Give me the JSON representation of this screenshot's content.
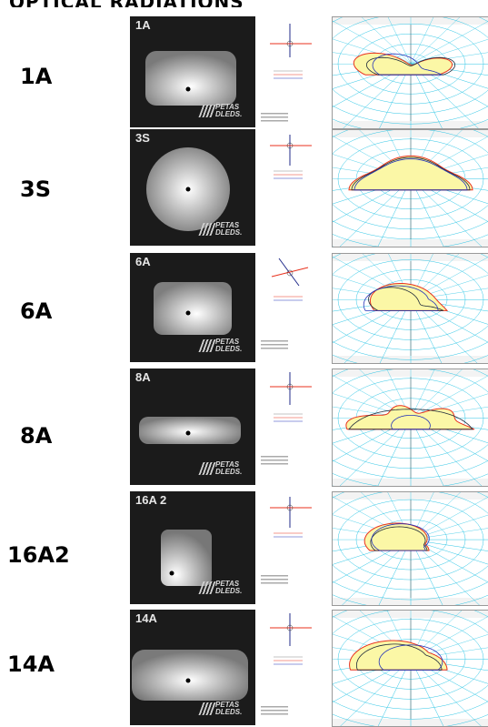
{
  "page": {
    "heading": "OPTICAL RADIATIONS"
  },
  "brand": {
    "line1": "PETAS",
    "line2": "DLEDS."
  },
  "rows": [
    {
      "label": "1A",
      "code": "1A"
    },
    {
      "label": "3S",
      "code": "3S"
    },
    {
      "label": "6A",
      "code": "6A"
    },
    {
      "label": "8A",
      "code": "8A"
    },
    {
      "label": "16A2",
      "code": "16A 2"
    },
    {
      "label": "14A",
      "code": "14A"
    }
  ],
  "polar_colors": {
    "grid": "#2ec6e6",
    "fill": "#fbf7a6",
    "curve_red": "#e8321e",
    "curve_dark": "#1f2a3a",
    "curve_blue": "#2433b8"
  }
}
